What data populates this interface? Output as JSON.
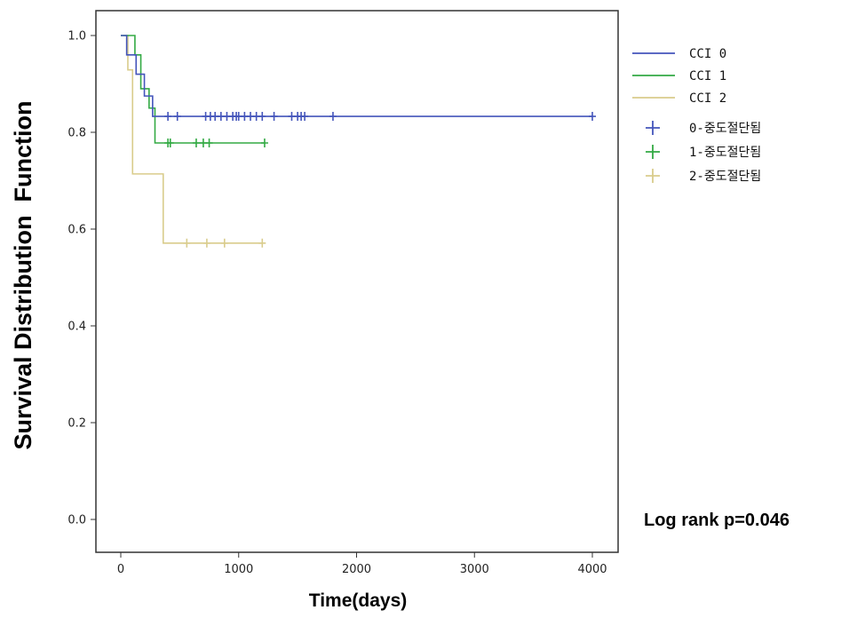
{
  "chart_data": {
    "type": "line",
    "subtype": "kaplan-meier",
    "ylabel": "Survival Distribution  Function",
    "xlabel": "Time(days)",
    "xlim": [
      -200,
      4200
    ],
    "ylim": [
      -0.05,
      1.05
    ],
    "xticks": [
      0,
      1000,
      2000,
      3000,
      4000
    ],
    "xtick_labels": [
      "0",
      "1000",
      "2000",
      "3000",
      "4000"
    ],
    "yticks": [
      0.0,
      0.2,
      0.4,
      0.6,
      0.8,
      1.0
    ],
    "ytick_labels": [
      "0.0",
      "0.2",
      "0.4",
      "0.6",
      "0.8",
      "1.0"
    ],
    "grid": false,
    "legend_position": "right",
    "annotation": "Log rank p=0.046",
    "series": [
      {
        "name": "CCI  0",
        "color": "#4455bb",
        "steps": [
          [
            0,
            1.0
          ],
          [
            50,
            0.96
          ],
          [
            130,
            0.92
          ],
          [
            200,
            0.875
          ],
          [
            270,
            0.833
          ],
          [
            4000,
            0.833
          ]
        ],
        "censored_name": "0-중도절단됨",
        "censored": [
          [
            400,
            0.833
          ],
          [
            480,
            0.833
          ],
          [
            720,
            0.833
          ],
          [
            760,
            0.833
          ],
          [
            800,
            0.833
          ],
          [
            850,
            0.833
          ],
          [
            900,
            0.833
          ],
          [
            950,
            0.833
          ],
          [
            980,
            0.833
          ],
          [
            1000,
            0.833
          ],
          [
            1050,
            0.833
          ],
          [
            1100,
            0.833
          ],
          [
            1150,
            0.833
          ],
          [
            1200,
            0.833
          ],
          [
            1300,
            0.833
          ],
          [
            1450,
            0.833
          ],
          [
            1500,
            0.833
          ],
          [
            1530,
            0.833
          ],
          [
            1560,
            0.833
          ],
          [
            1800,
            0.833
          ],
          [
            4000,
            0.833
          ]
        ]
      },
      {
        "name": "CCI  1",
        "color": "#33aa44",
        "steps": [
          [
            0,
            1.0
          ],
          [
            120,
            0.96
          ],
          [
            170,
            0.89
          ],
          [
            240,
            0.85
          ],
          [
            290,
            0.778
          ],
          [
            1220,
            0.778
          ]
        ],
        "censored_name": "1-중도절단됨",
        "censored": [
          [
            400,
            0.778
          ],
          [
            420,
            0.778
          ],
          [
            640,
            0.778
          ],
          [
            700,
            0.778
          ],
          [
            750,
            0.778
          ],
          [
            1220,
            0.778
          ]
        ]
      },
      {
        "name": "CCI  2",
        "color": "#d9cc8c",
        "steps": [
          [
            0,
            1.0
          ],
          [
            60,
            0.929
          ],
          [
            100,
            0.714
          ],
          [
            360,
            0.571
          ],
          [
            1200,
            0.571
          ]
        ],
        "censored_name": "2-중도절단됨",
        "censored": [
          [
            560,
            0.571
          ],
          [
            730,
            0.571
          ],
          [
            880,
            0.571
          ],
          [
            1200,
            0.571
          ]
        ]
      }
    ]
  }
}
